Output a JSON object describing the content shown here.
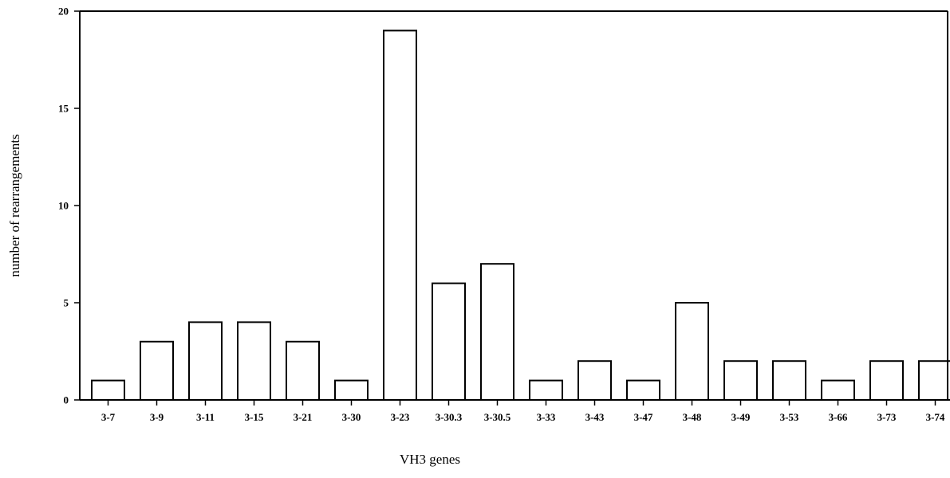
{
  "chart_data": {
    "type": "bar",
    "title": "",
    "xlabel": "VH3 genes",
    "ylabel": "number of rearrangements",
    "categories": [
      "3-7",
      "3-9",
      "3-11",
      "3-15",
      "3-21",
      "3-30",
      "3-23",
      "3-30.3",
      "3-30.5",
      "3-33",
      "3-43",
      "3-47",
      "3-48",
      "3-49",
      "3-53",
      "3-66",
      "3-73",
      "3-74"
    ],
    "values": [
      1,
      3,
      4,
      4,
      3,
      1,
      19,
      6,
      7,
      1,
      2,
      1,
      5,
      2,
      2,
      1,
      2,
      2
    ],
    "ylim": [
      0,
      20
    ],
    "yticks": [
      0,
      5,
      10,
      15,
      20
    ],
    "grid": false,
    "colors": {
      "bar_fill": "#ffffff",
      "bar_stroke": "#000000",
      "axis": "#000000"
    }
  }
}
